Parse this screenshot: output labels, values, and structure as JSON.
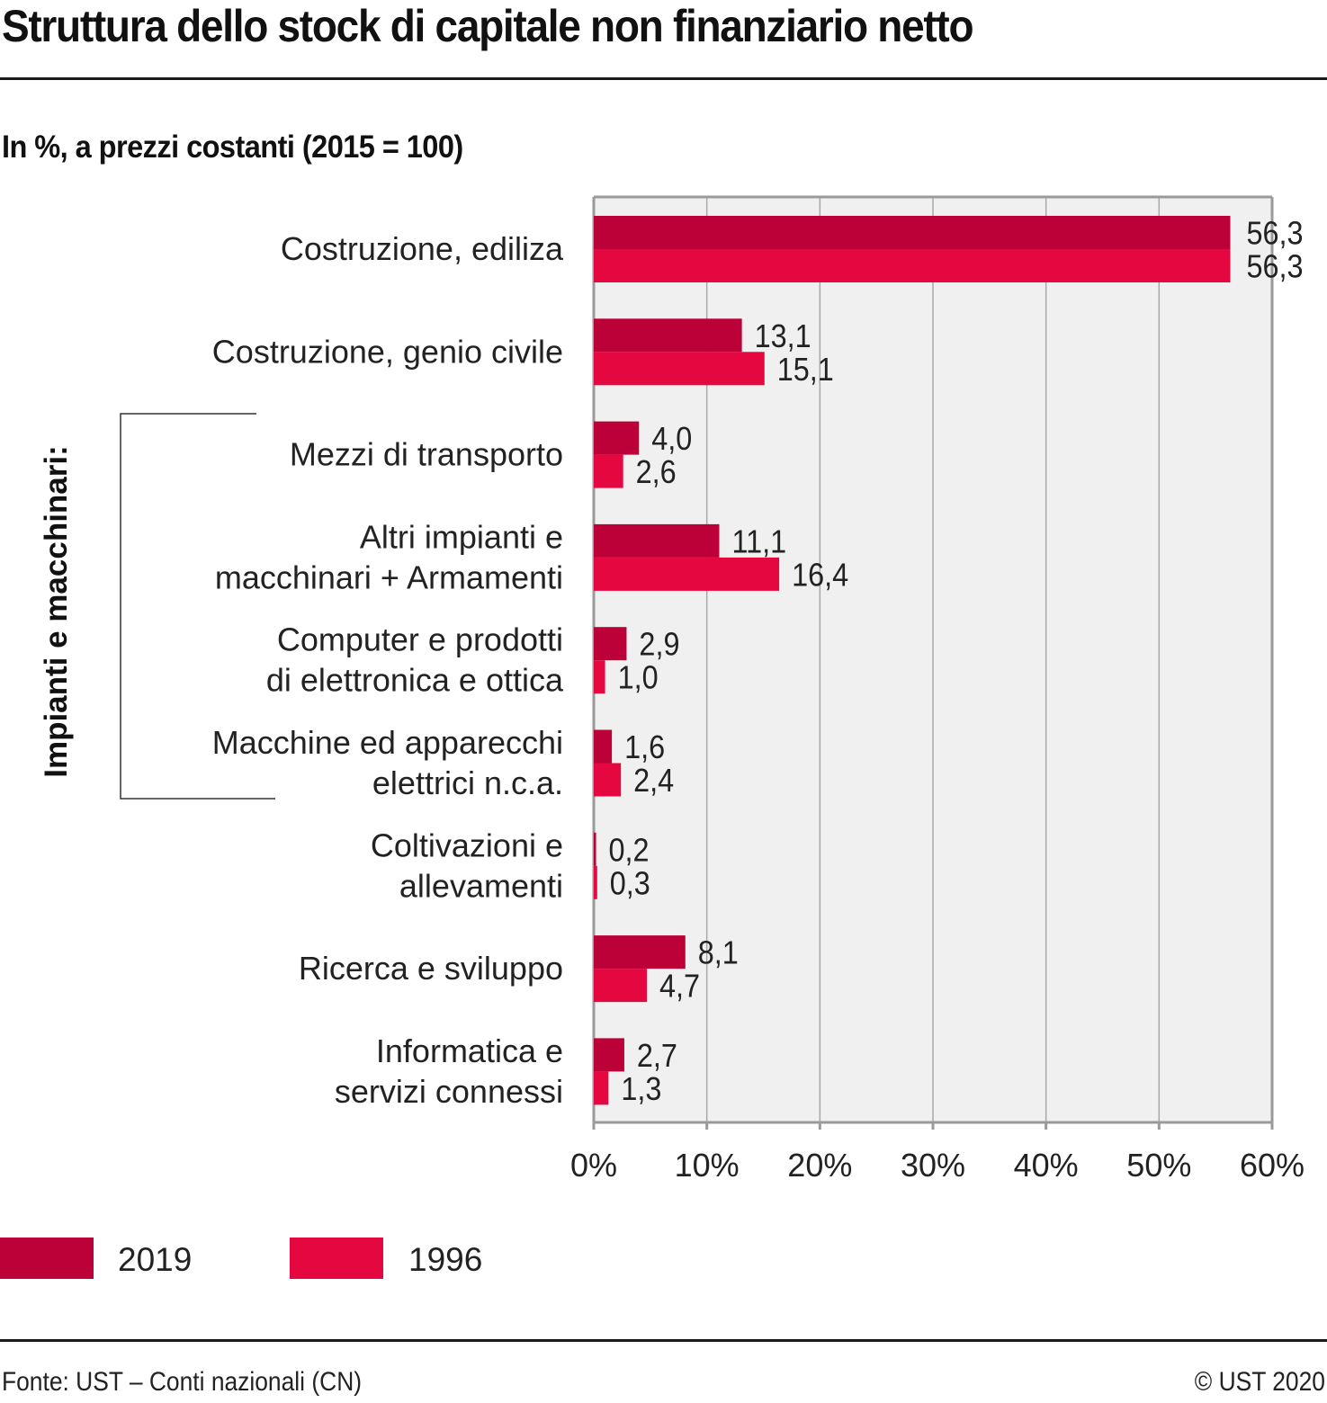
{
  "chart_data": {
    "type": "bar",
    "orientation": "horizontal",
    "title": "Struttura dello stock di capitale non finanziario netto",
    "subtitle": "In %, a prezzi costanti (2015 = 100)",
    "xlabel": "",
    "ylabel": "",
    "xlim": [
      0,
      60
    ],
    "x_ticks": [
      0,
      10,
      20,
      30,
      40,
      50,
      60
    ],
    "x_tick_labels": [
      "0%",
      "10%",
      "20%",
      "30%",
      "40%",
      "50%",
      "60%"
    ],
    "grid": true,
    "categories": [
      [
        "Costruzione, ediliza"
      ],
      [
        "Costruzione, genio civile"
      ],
      [
        "Mezzi di transporto"
      ],
      [
        "Altri impianti e",
        "macchinari + Armamenti"
      ],
      [
        "Computer e prodotti",
        "di elettronica e ottica"
      ],
      [
        "Macchine ed apparecchi",
        "elettrici n.c.a."
      ],
      [
        "Coltivazioni e",
        "allevamenti"
      ],
      [
        "Ricerca e sviluppo"
      ],
      [
        "Informatica e",
        "servizi connessi"
      ]
    ],
    "series": [
      {
        "name": "2019",
        "color": "#BC0038",
        "values": [
          56.3,
          13.1,
          4.0,
          11.1,
          2.9,
          1.6,
          0.2,
          8.1,
          2.7
        ],
        "labels": [
          "56,3",
          "13,1",
          "4,0",
          "11,1",
          "2,9",
          "1,6",
          "0,2",
          "8,1",
          "2,7"
        ]
      },
      {
        "name": "1996",
        "color": "#E5073F",
        "values": [
          56.3,
          15.1,
          2.6,
          16.4,
          1.0,
          2.4,
          0.3,
          4.7,
          1.3
        ],
        "labels": [
          "56,3",
          "15,1",
          "2,6",
          "16,4",
          "1,0",
          "2,4",
          "0,3",
          "4,7",
          "1,3"
        ]
      }
    ],
    "group_annotation": {
      "label": "Impianti e macchinari:",
      "categories_index_range": [
        2,
        5
      ]
    },
    "legend": {
      "position": "bottom-left",
      "entries": [
        "2019",
        "1996"
      ]
    }
  },
  "footer": {
    "source": "Fonte: UST – Conti nazionali (CN)",
    "copyright": "© UST 2020"
  }
}
